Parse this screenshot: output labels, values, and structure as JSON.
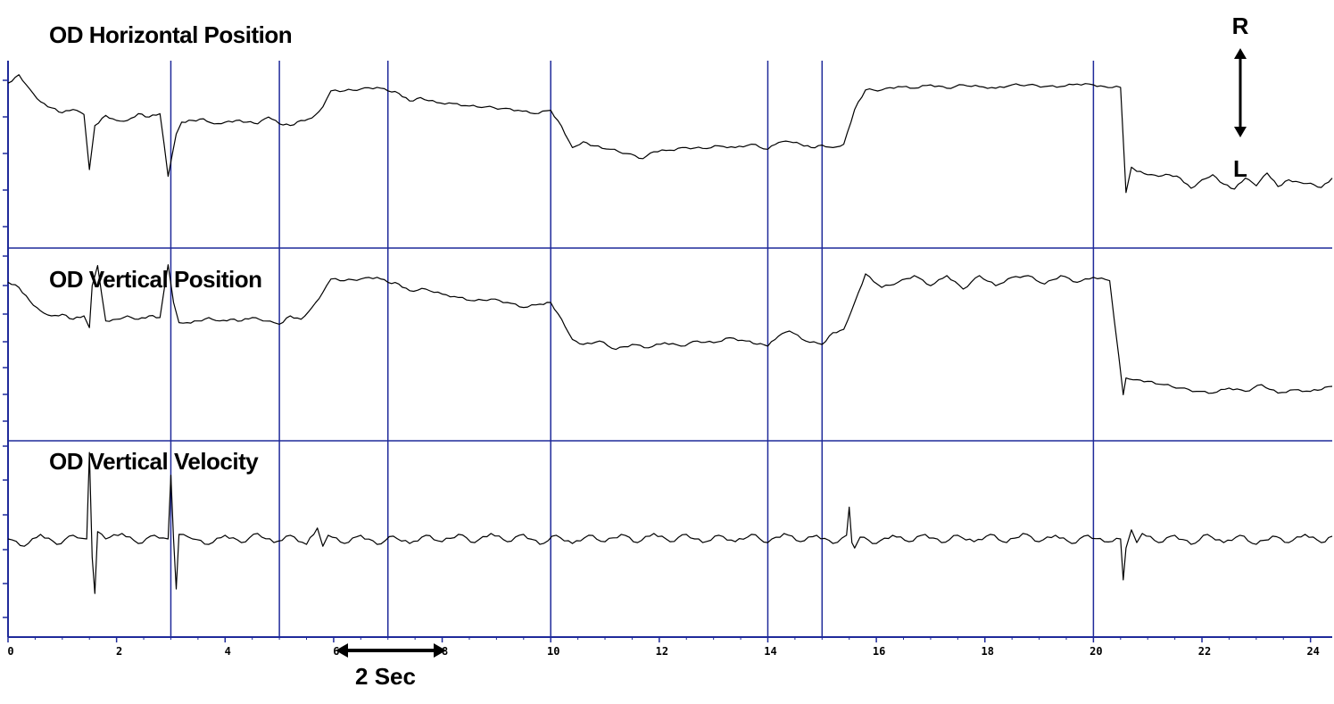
{
  "chart_data": {
    "type": "line",
    "x_axis": {
      "range": [
        0,
        24.4
      ],
      "ticks": [
        0,
        2,
        4,
        6,
        8,
        10,
        12,
        14,
        16,
        18,
        20,
        22,
        24
      ],
      "tick_labels": [
        "0",
        "2",
        "4",
        "6",
        "8",
        "10",
        "12",
        "14",
        "16",
        "18",
        "20",
        "22",
        "24"
      ],
      "grid": false
    },
    "event_markers_x": [
      3.0,
      5.0,
      7.0,
      10.0,
      14.0,
      15.0,
      20.0
    ],
    "colors": {
      "trace": "#000000",
      "markers": "#1f2a9a",
      "axes": "#1f2a9a",
      "background": "#ffffff"
    },
    "panels": [
      {
        "title": "OD Horizontal Position",
        "y_range": [
          -100,
          100
        ],
        "series": [
          {
            "x": [
              0,
              0.2,
              0.4,
              0.6,
              0.8,
              1.0,
              1.2,
              1.4,
              1.5,
              1.6,
              1.8,
              2.0,
              2.2,
              2.4,
              2.6,
              2.8,
              2.95,
              3.1,
              3.2,
              3.4,
              3.6,
              3.8,
              4.0,
              4.2,
              4.4,
              4.6,
              4.8,
              5.0,
              5.2,
              5.4,
              5.6,
              5.8,
              5.95,
              6.2,
              6.5,
              6.8,
              7.0,
              7.2,
              7.4,
              7.6,
              7.9,
              8.2,
              8.5,
              8.8,
              9.1,
              9.4,
              9.7,
              10.0,
              10.2,
              10.4,
              10.6,
              10.8,
              11.1,
              11.4,
              11.7,
              11.9,
              12.2,
              12.5,
              12.8,
              13.1,
              13.4,
              13.7,
              14.0,
              14.2,
              14.4,
              14.6,
              14.8,
              15.0,
              15.2,
              15.4,
              15.6,
              15.8,
              16.1,
              16.4,
              16.7,
              17.0,
              17.3,
              17.6,
              17.9,
              18.2,
              18.5,
              18.8,
              19.1,
              19.4,
              19.7,
              20.0,
              20.2,
              20.5,
              20.6,
              20.7,
              20.8,
              21.0,
              21.2,
              21.4,
              21.6,
              21.8,
              22.0,
              22.2,
              22.4,
              22.6,
              22.8,
              23.0,
              23.2,
              23.4,
              23.6,
              23.8,
              24.0,
              24.2,
              24.4
            ],
            "y": [
              84,
              94,
              77,
              62,
              55,
              49,
              53,
              47,
              -18,
              34,
              46,
              40,
              40,
              48,
              44,
              48,
              -26,
              24,
              38,
              40,
              42,
              36,
              38,
              40,
              38,
              36,
              44,
              36,
              34,
              40,
              43,
              56,
              75,
              75,
              77,
              79,
              75,
              72,
              63,
              67,
              61,
              60,
              57,
              56,
              54,
              52,
              48,
              52,
              33,
              8,
              15,
              10,
              6,
              1,
              -5,
              3,
              5,
              8,
              7,
              10,
              8,
              12,
              6,
              14,
              15,
              12,
              8,
              11,
              8,
              12,
              53,
              76,
              76,
              80,
              78,
              82,
              78,
              82,
              80,
              78,
              82,
              82,
              80,
              80,
              83,
              82,
              80,
              79,
              -45,
              -15,
              -20,
              -24,
              -26,
              -24,
              -28,
              -40,
              -30,
              -24,
              -35,
              -41,
              -28,
              -37,
              -22,
              -38,
              -30,
              -33,
              -34,
              -39,
              -28
            ]
          }
        ]
      },
      {
        "title": "OD Vertical Position",
        "y_range": [
          -100,
          100
        ],
        "series": [
          {
            "x": [
              0,
              0.2,
              0.4,
              0.6,
              0.8,
              1.0,
              1.2,
              1.4,
              1.5,
              1.55,
              1.65,
              1.8,
              2.0,
              2.2,
              2.4,
              2.6,
              2.8,
              2.95,
              3.05,
              3.15,
              3.3,
              3.5,
              3.7,
              3.9,
              4.1,
              4.3,
              4.5,
              4.7,
              4.9,
              5.0,
              5.2,
              5.4,
              5.6,
              5.8,
              5.95,
              6.2,
              6.5,
              6.8,
              7.0,
              7.2,
              7.4,
              7.7,
              8.0,
              8.3,
              8.6,
              8.9,
              9.2,
              9.5,
              9.8,
              10.0,
              10.2,
              10.4,
              10.6,
              10.9,
              11.2,
              11.5,
              11.8,
              12.1,
              12.4,
              12.7,
              13.0,
              13.3,
              13.6,
              14.0,
              14.2,
              14.4,
              14.7,
              15.0,
              15.2,
              15.4,
              15.6,
              15.8,
              16.1,
              16.4,
              16.7,
              17.0,
              17.3,
              17.6,
              17.9,
              18.2,
              18.5,
              18.8,
              19.1,
              19.4,
              19.7,
              20.0,
              20.3,
              20.55,
              20.6,
              20.8,
              21.0,
              21.3,
              21.6,
              21.9,
              22.2,
              22.5,
              22.8,
              23.1,
              23.4,
              23.7,
              24.0,
              24.4
            ],
            "y": [
              74,
              68,
              52,
              40,
              34,
              36,
              30,
              34,
              20,
              70,
              94,
              28,
              30,
              34,
              30,
              34,
              32,
              95,
              50,
              26,
              26,
              28,
              32,
              28,
              30,
              28,
              32,
              28,
              26,
              24,
              34,
              30,
              44,
              62,
              78,
              76,
              78,
              80,
              74,
              72,
              64,
              66,
              60,
              56,
              52,
              54,
              50,
              44,
              48,
              50,
              30,
              6,
              0,
              4,
              -6,
              0,
              -4,
              2,
              -2,
              4,
              2,
              8,
              4,
              -2,
              10,
              16,
              4,
              0,
              14,
              18,
              50,
              84,
              68,
              74,
              82,
              70,
              82,
              66,
              82,
              70,
              80,
              82,
              72,
              82,
              74,
              80,
              76,
              -60,
              -40,
              -42,
              -44,
              -48,
              -52,
              -56,
              -58,
              -52,
              -56,
              -48,
              -58,
              -54,
              -56,
              -50
            ]
          }
        ]
      },
      {
        "title": "OD Vertical Velocity",
        "y_range": [
          -100,
          100
        ],
        "series": [
          {
            "x": [
              0,
              0.3,
              0.6,
              0.9,
              1.2,
              1.45,
              1.5,
              1.55,
              1.6,
              1.65,
              1.8,
              2.1,
              2.4,
              2.7,
              2.95,
              3.0,
              3.05,
              3.1,
              3.15,
              3.4,
              3.7,
              4.0,
              4.3,
              4.6,
              4.9,
              5.2,
              5.5,
              5.7,
              5.8,
              5.9,
              6.2,
              6.5,
              6.8,
              7.1,
              7.4,
              7.7,
              8.0,
              8.3,
              8.6,
              8.9,
              9.2,
              9.5,
              9.8,
              10.1,
              10.4,
              10.7,
              11.0,
              11.3,
              11.6,
              11.9,
              12.2,
              12.5,
              12.8,
              13.1,
              13.4,
              13.7,
              14.0,
              14.3,
              14.6,
              14.9,
              15.2,
              15.45,
              15.5,
              15.55,
              15.6,
              15.7,
              16.0,
              16.3,
              16.6,
              16.9,
              17.2,
              17.5,
              17.8,
              18.1,
              18.4,
              18.7,
              19.0,
              19.3,
              19.6,
              19.9,
              20.2,
              20.5,
              20.55,
              20.6,
              20.7,
              20.8,
              20.9,
              21.2,
              21.5,
              21.8,
              22.1,
              22.4,
              22.7,
              23.0,
              23.3,
              23.6,
              23.9,
              24.2,
              24.4
            ],
            "y": [
              0,
              -8,
              5,
              -6,
              4,
              0,
              95,
              -20,
              -60,
              8,
              0,
              6,
              -5,
              4,
              0,
              70,
              0,
              -55,
              5,
              0,
              -6,
              4,
              -4,
              6,
              -4,
              4,
              -6,
              12,
              -8,
              4,
              -5,
              4,
              -6,
              3,
              -5,
              4,
              -3,
              5,
              -4,
              6,
              -3,
              5,
              -6,
              4,
              -5,
              4,
              -3,
              5,
              -4,
              6,
              -3,
              5,
              -4,
              4,
              -3,
              5,
              -4,
              6,
              -3,
              4,
              -5,
              4,
              35,
              -4,
              -10,
              2,
              -5,
              4,
              -3,
              5,
              -4,
              4,
              -3,
              5,
              -4,
              6,
              -3,
              4,
              -5,
              4,
              -3,
              0,
              -45,
              -10,
              10,
              -4,
              6,
              -4,
              4,
              -6,
              5,
              -4,
              4,
              -6,
              3,
              -4,
              5,
              -4,
              3
            ]
          }
        ]
      }
    ],
    "annotations": {
      "direction_up": "R",
      "direction_down": "L",
      "time_scale": "2 Sec"
    }
  }
}
